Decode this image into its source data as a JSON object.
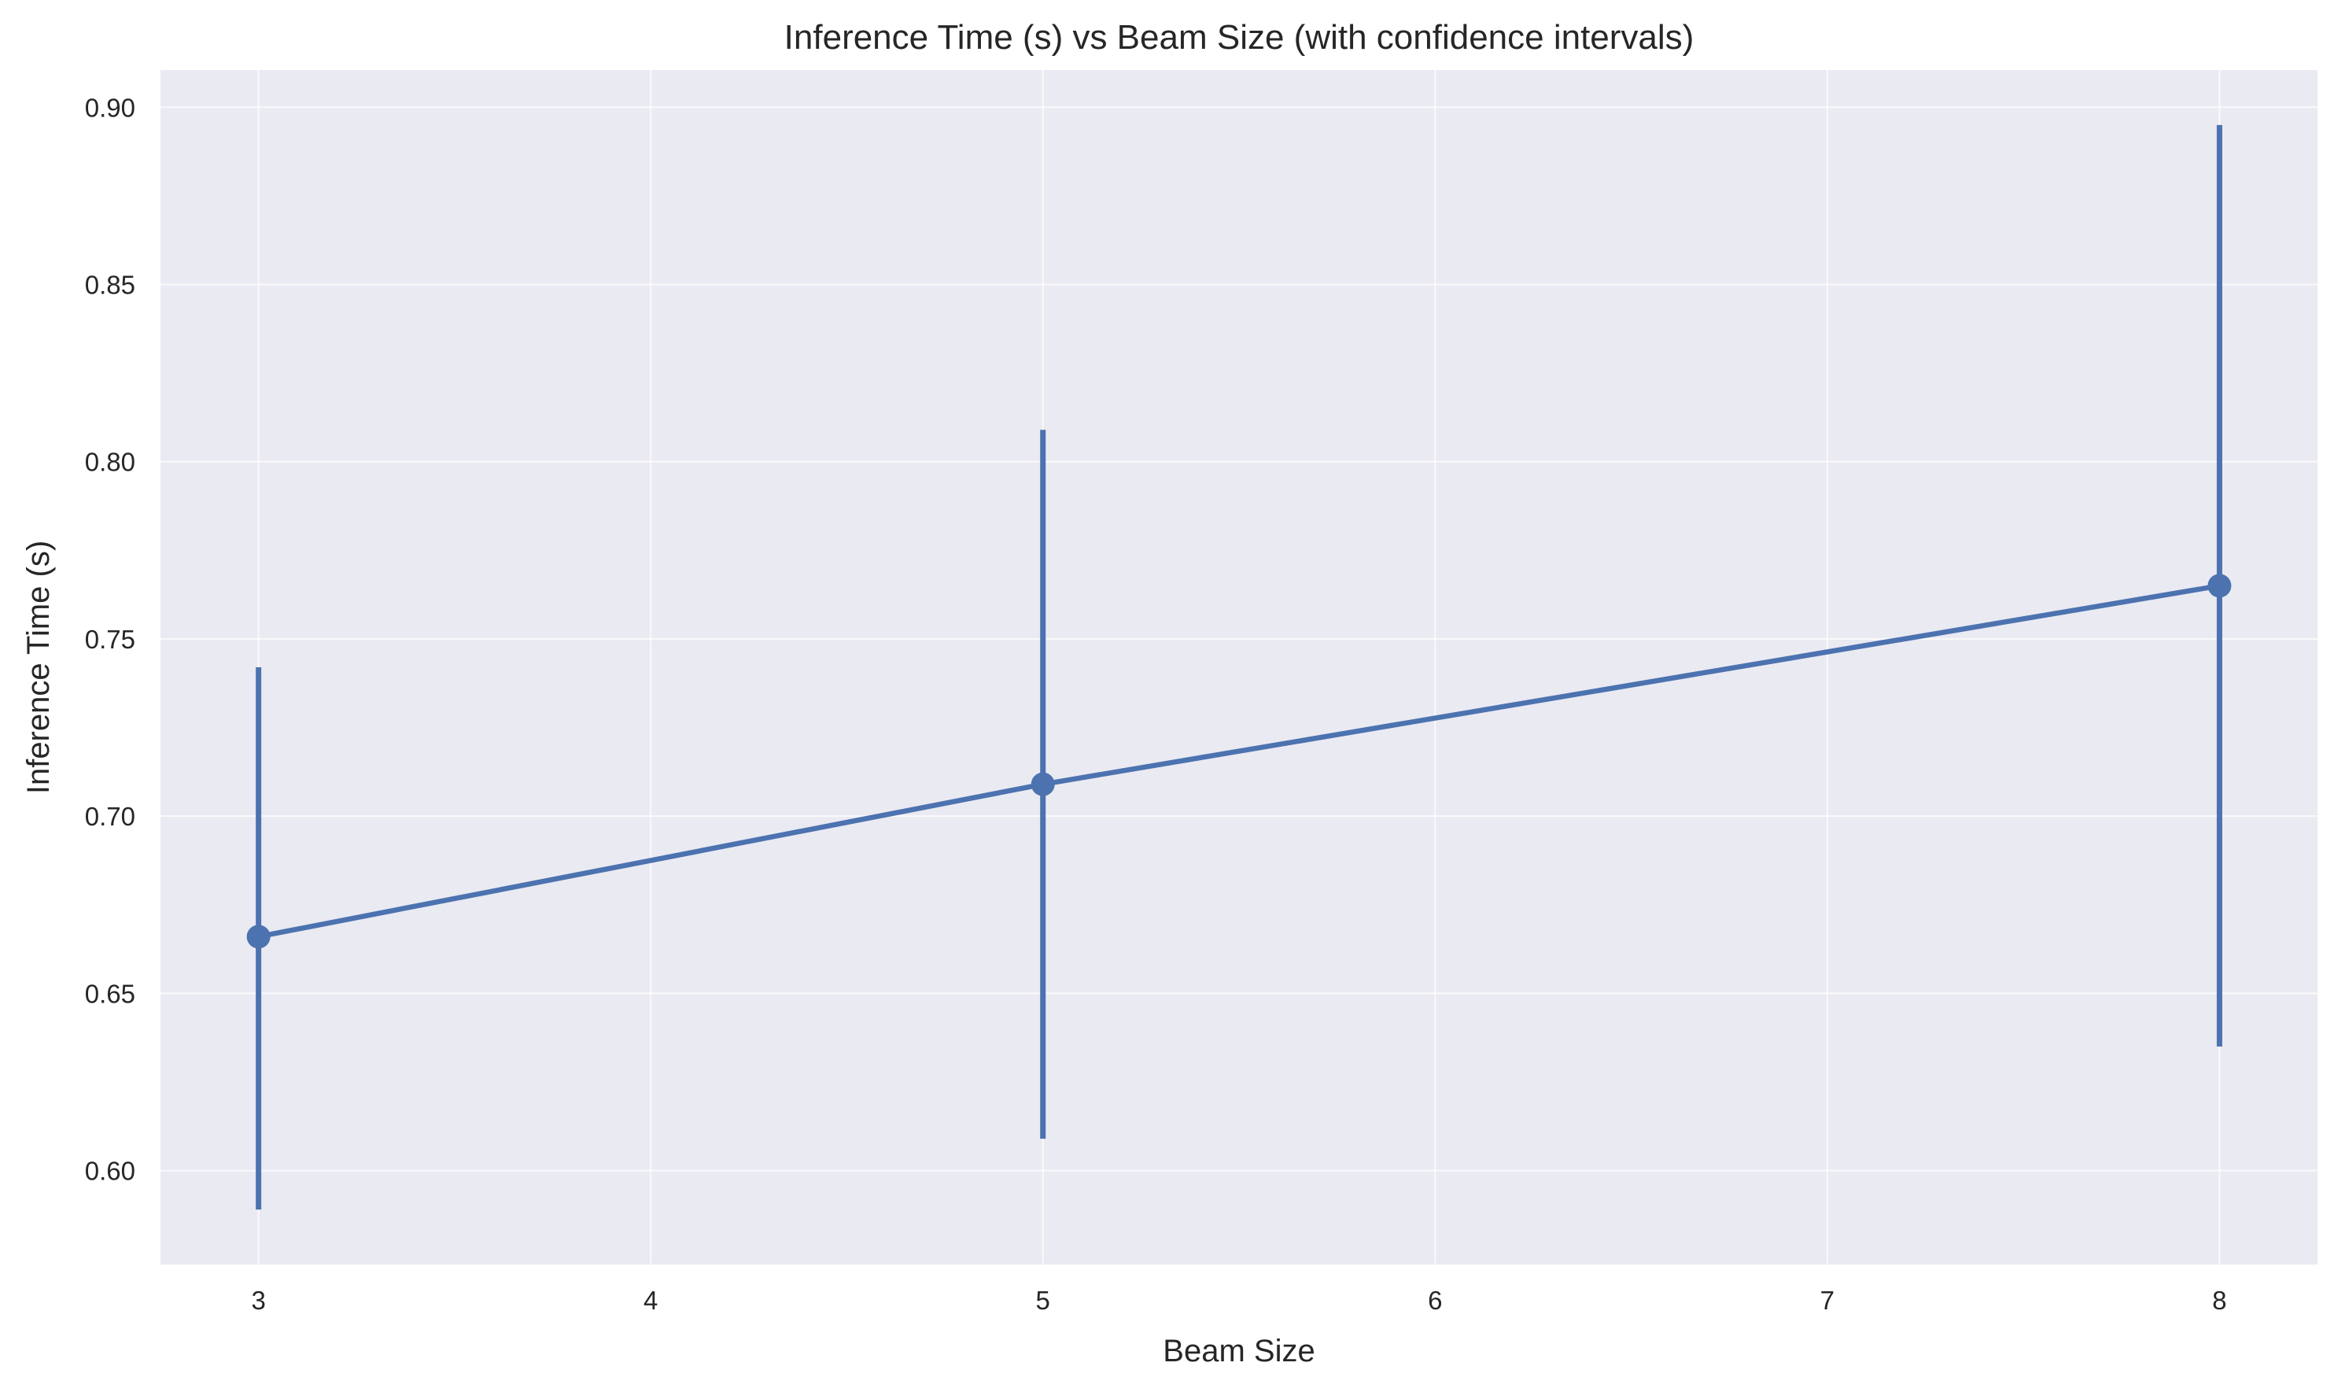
{
  "chart_data": {
    "type": "line",
    "title": "Inference Time (s) vs Beam Size (with confidence intervals)",
    "xlabel": "Beam Size",
    "ylabel": "Inference Time (s)",
    "xlim": [
      2.75,
      8.25
    ],
    "ylim": [
      0.5735,
      0.9105
    ],
    "x_ticks": [
      3,
      4,
      5,
      6,
      7,
      8
    ],
    "y_ticks": [
      0.6,
      0.65,
      0.7,
      0.75,
      0.8,
      0.85,
      0.9
    ],
    "y_tick_labels": [
      "0.60",
      "0.65",
      "0.70",
      "0.75",
      "0.80",
      "0.85",
      "0.90"
    ],
    "grid": true,
    "series": [
      {
        "color": "#4c72b0",
        "x": [
          3,
          5,
          8
        ],
        "values": [
          0.666,
          0.709,
          0.765
        ],
        "ci_lower": [
          0.589,
          0.609,
          0.635
        ],
        "ci_upper": [
          0.742,
          0.809,
          0.895
        ]
      }
    ]
  }
}
